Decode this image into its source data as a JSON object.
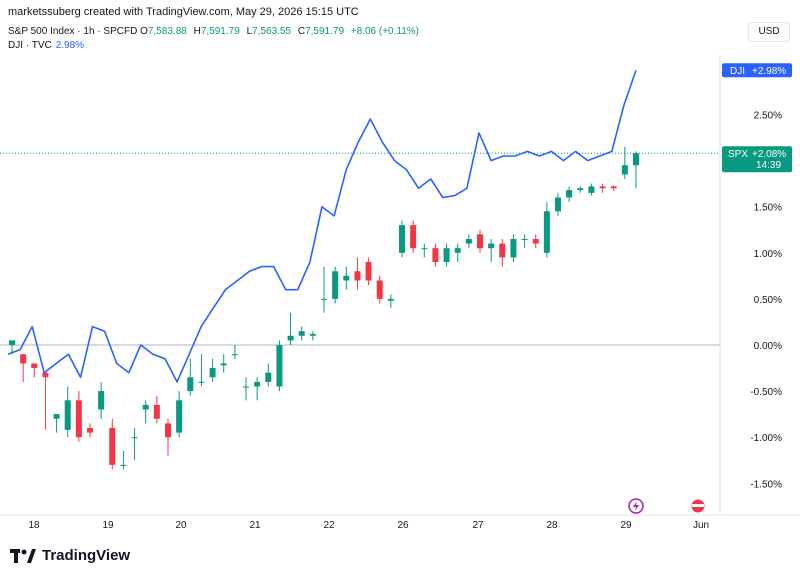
{
  "header": {
    "line1": "marketssuberg created with TradingView.com, May 29, 2026 15:15 UTC",
    "symbol": "S&P 500 Index · 1h · SPCFD",
    "o_label": "O",
    "o_val": "7,583.88",
    "h_label": "H",
    "h_val": "7,591.79",
    "l_label": "L",
    "l_val": "7,563.55",
    "c_label": "C",
    "c_val": "7,591.79",
    "change": "+8.06 (+0.11%)",
    "dji_label": "DJI · TVC",
    "dji_pct": "2.98%",
    "currency": "USD"
  },
  "footer": {
    "brand": "TradingView"
  },
  "colors": {
    "up": "#089981",
    "down": "#f23645",
    "dji": "#2962ff",
    "axis_text": "#131722",
    "grid_zero": "#b2b5be"
  },
  "chart_data": {
    "type": "line",
    "yunit": "percent",
    "ylim": [
      -1.75,
      3.0
    ],
    "yticks": [
      "2.50%",
      "2.00%",
      "1.50%",
      "1.00%",
      "0.50%",
      "0.00%",
      "-0.50%",
      "-1.00%",
      "-1.50%"
    ],
    "ytick_values": [
      2.5,
      2.0,
      1.5,
      1.0,
      0.5,
      0.0,
      -0.5,
      -1.0,
      -1.5
    ],
    "xticks": [
      "18",
      "19",
      "20",
      "21",
      "22",
      "26",
      "27",
      "28",
      "29",
      "Jun"
    ],
    "series": [
      {
        "name": "DJI",
        "values": [
          -0.1,
          -0.05,
          0.2,
          -0.3,
          -0.2,
          -0.1,
          -0.35,
          0.2,
          0.15,
          -0.2,
          -0.3,
          0.0,
          -0.1,
          -0.15,
          -0.4,
          -0.1,
          0.2,
          0.4,
          0.6,
          0.7,
          0.8,
          0.85,
          0.85,
          0.6,
          0.6,
          0.9,
          1.5,
          1.4,
          1.9,
          2.2,
          2.45,
          2.2,
          2.0,
          1.9,
          1.7,
          1.8,
          1.6,
          1.62,
          1.7,
          2.3,
          2.0,
          2.05,
          2.05,
          2.1,
          2.05,
          2.1,
          2.0,
          2.1,
          2.0,
          2.05,
          2.1,
          2.6,
          2.98
        ]
      },
      {
        "name": "SPX",
        "type": "candlestick",
        "candles": [
          [
            0.0,
            0.05,
            -0.1,
            -0.1
          ],
          [
            -0.1,
            -0.2,
            -0.3,
            -0.4
          ],
          [
            -0.2,
            -0.25,
            -0.3,
            -0.35
          ],
          [
            -0.3,
            -0.35,
            -0.9,
            -0.92
          ],
          [
            -0.8,
            -0.75,
            -0.95,
            -0.95
          ],
          [
            -0.92,
            -0.6,
            -0.45,
            -1.0
          ],
          [
            -0.6,
            -1.0,
            -0.5,
            -1.05
          ],
          [
            -0.9,
            -0.95,
            -0.85,
            -1.0
          ],
          [
            -0.7,
            -0.5,
            -0.4,
            -0.8
          ],
          [
            -0.9,
            -1.3,
            -0.8,
            -1.35
          ],
          [
            -1.3,
            -1.3,
            -1.15,
            -1.35
          ],
          [
            -1.0,
            -1.0,
            -0.9,
            -1.25
          ],
          [
            -0.7,
            -0.65,
            -0.6,
            -0.85
          ],
          [
            -0.65,
            -0.8,
            -0.55,
            -0.85
          ],
          [
            -0.85,
            -1.0,
            -0.8,
            -1.2
          ],
          [
            -0.95,
            -0.6,
            -0.5,
            -1.0
          ],
          [
            -0.5,
            -0.35,
            -0.15,
            -0.55
          ],
          [
            -0.4,
            -0.4,
            -0.1,
            -0.45
          ],
          [
            -0.35,
            -0.25,
            -0.15,
            -0.4
          ],
          [
            -0.22,
            -0.2,
            -0.1,
            -0.3
          ],
          [
            -0.1,
            -0.1,
            0.0,
            -0.15
          ],
          [
            -0.45,
            -0.45,
            -0.35,
            -0.6
          ],
          [
            -0.45,
            -0.4,
            -0.35,
            -0.6
          ],
          [
            -0.4,
            -0.3,
            -0.2,
            -0.45
          ],
          [
            -0.45,
            0.0,
            0.05,
            -0.5
          ],
          [
            0.05,
            0.1,
            0.35,
            0.0
          ],
          [
            0.1,
            0.15,
            0.2,
            0.05
          ],
          [
            0.1,
            0.12,
            0.15,
            0.05
          ],
          [
            0.5,
            0.5,
            0.85,
            0.35
          ],
          [
            0.5,
            0.8,
            0.85,
            0.45
          ],
          [
            0.7,
            0.75,
            0.85,
            0.6
          ],
          [
            0.8,
            0.7,
            0.95,
            0.6
          ],
          [
            0.9,
            0.7,
            0.95,
            0.65
          ],
          [
            0.7,
            0.5,
            0.75,
            0.45
          ],
          [
            0.48,
            0.5,
            0.55,
            0.4
          ],
          [
            1.0,
            1.3,
            1.35,
            0.95
          ],
          [
            1.3,
            1.05,
            1.35,
            1.0
          ],
          [
            1.05,
            1.05,
            1.1,
            0.95
          ],
          [
            1.05,
            0.9,
            1.1,
            0.85
          ],
          [
            0.9,
            1.05,
            1.1,
            0.85
          ],
          [
            1.0,
            1.05,
            1.1,
            0.9
          ],
          [
            1.1,
            1.15,
            1.2,
            1.05
          ],
          [
            1.2,
            1.05,
            1.25,
            1.0
          ],
          [
            1.05,
            1.1,
            1.15,
            0.9
          ],
          [
            1.1,
            0.95,
            1.15,
            0.85
          ],
          [
            0.95,
            1.15,
            1.2,
            0.9
          ],
          [
            1.15,
            1.15,
            1.2,
            1.05
          ],
          [
            1.15,
            1.1,
            1.2,
            1.05
          ],
          [
            1.0,
            1.45,
            1.55,
            0.95
          ],
          [
            1.45,
            1.6,
            1.65,
            1.4
          ],
          [
            1.6,
            1.68,
            1.72,
            1.55
          ],
          [
            1.68,
            1.7,
            1.72,
            1.65
          ],
          [
            1.65,
            1.72,
            1.75,
            1.62
          ],
          [
            1.72,
            1.7,
            1.75,
            1.65
          ],
          [
            1.72,
            1.7,
            1.73,
            1.67
          ],
          [
            1.85,
            1.95,
            2.15,
            1.8
          ],
          [
            1.95,
            2.08,
            2.1,
            1.7
          ]
        ]
      }
    ],
    "labels": {
      "dji_tag": "DJI",
      "dji_value": "+2.98%",
      "spx_tag": "SPX",
      "spx_value": "+2.08%",
      "spx_time": "14:39"
    },
    "last_values": {
      "dji": 2.98,
      "spx": 2.08
    },
    "grid": false,
    "legend": "top-left"
  }
}
